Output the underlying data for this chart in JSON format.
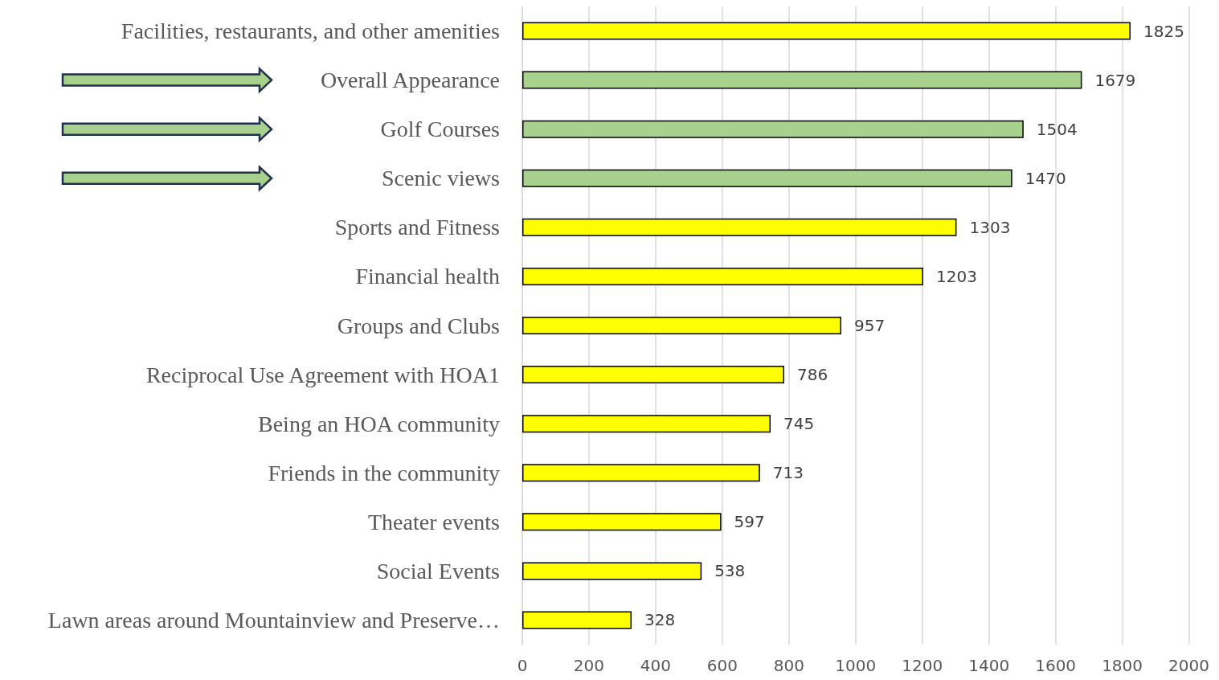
{
  "chart_data": {
    "type": "bar",
    "orientation": "horizontal",
    "categories": [
      "Facilities, restaurants, and other amenities",
      "Overall Appearance",
      "Golf Courses",
      "Scenic views",
      "Sports and Fitness",
      "Financial health",
      "Groups and Clubs",
      "Reciprocal Use Agreement with HOA1",
      "Being an HOA community",
      "Friends in the community",
      "Theater events",
      "Social Events",
      "Lawn areas around Mountainview and Preserve…"
    ],
    "values": [
      1825,
      1679,
      1504,
      1470,
      1303,
      1203,
      957,
      786,
      745,
      713,
      597,
      538,
      328
    ],
    "colors": [
      "#ffff00",
      "#a9d18e",
      "#a9d18e",
      "#a9d18e",
      "#ffff00",
      "#ffff00",
      "#ffff00",
      "#ffff00",
      "#ffff00",
      "#ffff00",
      "#ffff00",
      "#ffff00",
      "#ffff00"
    ],
    "xlim": [
      0,
      2000
    ],
    "xticks": [
      0,
      200,
      400,
      600,
      800,
      1000,
      1200,
      1400,
      1600,
      1800,
      2000
    ],
    "grid": "x",
    "data_labels": true
  }
}
